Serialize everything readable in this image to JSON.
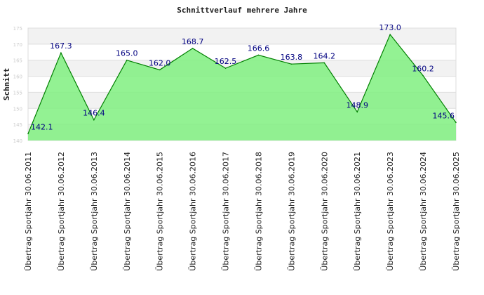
{
  "chart_data": {
    "type": "area",
    "title": "Schnittverlauf mehrere Jahre",
    "xlabel": "",
    "ylabel": "Schnitt",
    "ylim": [
      140,
      175
    ],
    "yticks": [
      "140",
      "145",
      "150",
      "155",
      "160",
      "165",
      "170",
      "175"
    ],
    "grid": true,
    "categories": [
      "Übertrag Sportjahr 30.06.2011",
      "Übertrag Sportjahr 30.06.2012",
      "Übertrag Sportjahr 30.06.2013",
      "Übertrag Sportjahr 30.06.2014",
      "Übertrag Sportjahr 30.06.2015",
      "Übertrag Sportjahr 30.06.2016",
      "Übertrag Sportjahr 30.06.2017",
      "Übertrag Sportjahr 30.06.2018",
      "Übertrag Sportjahr 30.06.2019",
      "Übertrag Sportjahr 30.06.2020",
      "Übertrag Sportjahr 30.06.2021",
      "Übertrag Sportjahr 30.06.2023",
      "Übertrag Sportjahr 30.06.2024",
      "Übertrag Sportjahr 30.06.2025"
    ],
    "values": [
      142.1,
      167.3,
      146.4,
      165.0,
      162.0,
      168.7,
      162.5,
      166.6,
      163.8,
      164.2,
      148.9,
      173.0,
      160.2,
      145.6
    ],
    "labels": [
      "142.1",
      "167.3",
      "146.4",
      "165.0",
      "162.0",
      "168.7",
      "162.5",
      "166.6",
      "163.8",
      "164.2",
      "148.9",
      "173.0",
      "160.2",
      "145.6"
    ],
    "colors": {
      "fill": "#80f080",
      "line": "#008000",
      "label": "#000080"
    }
  }
}
